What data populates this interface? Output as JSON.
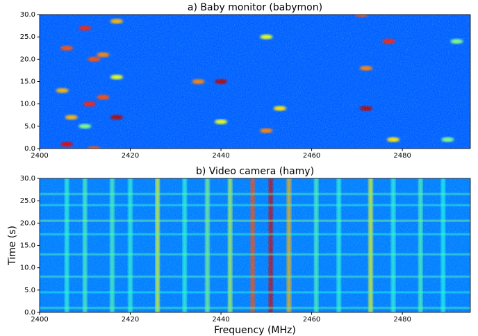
{
  "chart_data": [
    {
      "type": "heatmap",
      "title": "a) Baby monitor (babymon)",
      "colormap": "jet",
      "background": 0.22,
      "xlim": [
        2400,
        2495
      ],
      "ylim": [
        30,
        0
      ],
      "xticks": [
        2400,
        2420,
        2440,
        2460,
        2480
      ],
      "yticks": [
        {
          "value": 0,
          "label": "0.0"
        },
        {
          "value": 5,
          "label": "5.0"
        },
        {
          "value": 10,
          "label": "10.0"
        },
        {
          "value": 15,
          "label": "15.0"
        },
        {
          "value": 20,
          "label": "20.0"
        },
        {
          "value": 25,
          "label": "25.0"
        },
        {
          "value": 30,
          "label": "30.0"
        }
      ],
      "bursts": {
        "x": [
          2406,
          2412,
          2407,
          2417,
          2411,
          2414,
          2405,
          2417,
          2412,
          2414,
          2406,
          2410,
          2417,
          2410,
          2440,
          2435,
          2440,
          2450,
          2450,
          2453,
          2472,
          2472,
          2477,
          2478,
          2471,
          2490,
          2492
        ],
        "y": [
          1,
          0,
          7,
          7,
          10,
          11.5,
          13,
          16,
          20,
          21,
          22.5,
          27,
          28.5,
          5,
          15,
          15,
          6,
          4,
          25,
          9,
          9,
          18,
          24,
          2,
          30,
          2,
          24
        ],
        "values": [
          0.9,
          0.8,
          0.7,
          0.95,
          0.85,
          0.8,
          0.7,
          0.6,
          0.8,
          0.75,
          0.8,
          0.85,
          0.7,
          0.5,
          0.95,
          0.75,
          0.6,
          0.75,
          0.6,
          0.65,
          0.95,
          0.75,
          0.85,
          0.65,
          0.8,
          0.5,
          0.5
        ]
      }
    },
    {
      "type": "heatmap",
      "title": "b) Video camera (hamy)",
      "colormap": "jet",
      "background": 0.25,
      "xlabel": "Frequency (MHz)",
      "ylabel": "Time (s)",
      "xlim": [
        2400,
        2495
      ],
      "ylim": [
        30,
        0
      ],
      "xticks": [
        2400,
        2420,
        2440,
        2460,
        2480
      ],
      "yticks": [
        {
          "value": 0,
          "label": "0.0"
        },
        {
          "value": 5,
          "label": "5.0"
        },
        {
          "value": 10,
          "label": "10.0"
        },
        {
          "value": 15,
          "label": "15.0"
        },
        {
          "value": 20,
          "label": "20.0"
        },
        {
          "value": 25,
          "label": "25.0"
        },
        {
          "value": 30,
          "label": "30.0"
        }
      ],
      "bands": {
        "x": [
          2406,
          2410,
          2416,
          2420,
          2426,
          2432,
          2437,
          2442,
          2447,
          2451,
          2455,
          2461,
          2466,
          2473,
          2478,
          2484,
          2489
        ],
        "values": [
          0.42,
          0.45,
          0.45,
          0.42,
          0.6,
          0.42,
          0.5,
          0.55,
          0.8,
          0.93,
          0.7,
          0.45,
          0.42,
          0.6,
          0.42,
          0.45,
          0.4
        ]
      },
      "streaks": {
        "y": [
          1,
          4.5,
          8,
          13,
          17.5,
          20.5,
          24,
          26.5
        ],
        "values": [
          0.45,
          0.4,
          0.45,
          0.45,
          0.42,
          0.5,
          0.42,
          0.45
        ]
      }
    }
  ]
}
